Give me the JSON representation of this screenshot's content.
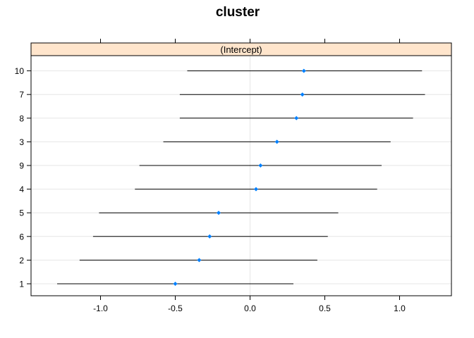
{
  "chart_data": {
    "type": "scatter",
    "title": "cluster",
    "panel_label": "(Intercept)",
    "xlabel": "",
    "ylabel": "",
    "xlim": [
      -1.45,
      1.35
    ],
    "xticks": [
      -1.0,
      -0.5,
      0.0,
      0.5,
      1.0
    ],
    "xtick_labels": [
      "-1.0",
      "-0.5",
      "0.0",
      "0.5",
      "1.0"
    ],
    "grid": true,
    "categories": [
      "1",
      "2",
      "6",
      "5",
      "4",
      "9",
      "3",
      "8",
      "7",
      "10"
    ],
    "series": [
      {
        "estimate": [
          -0.5,
          -0.34,
          -0.27,
          -0.21,
          0.04,
          0.07,
          0.18,
          0.31,
          0.35,
          0.36
        ],
        "lower": [
          -1.29,
          -1.14,
          -1.05,
          -1.01,
          -0.77,
          -0.74,
          -0.58,
          -0.47,
          -0.47,
          -0.42
        ],
        "upper": [
          0.29,
          0.45,
          0.52,
          0.59,
          0.85,
          0.88,
          0.94,
          1.09,
          1.17,
          1.15
        ]
      }
    ],
    "colors": {
      "point": "#0080ff",
      "interval": "#000000",
      "strip_fill": "#ffe5cc",
      "grid": "#e6e6e6"
    }
  }
}
